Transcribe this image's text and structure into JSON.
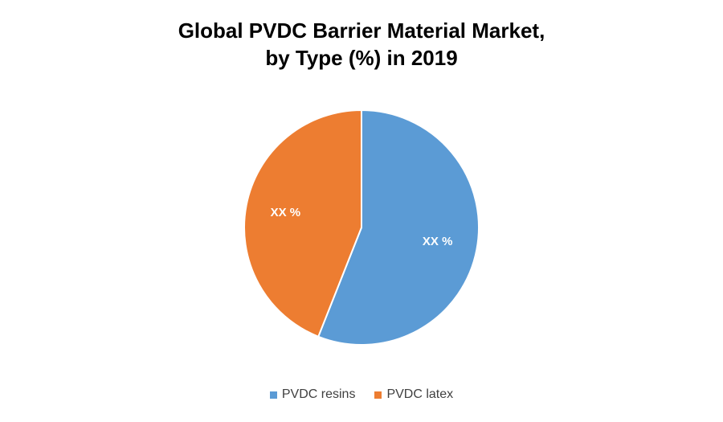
{
  "chart_data": {
    "type": "pie",
    "title_line1": "Global PVDC Barrier Material Market,",
    "title_line2": "by Type (%) in 2019",
    "categories": [
      "PVDC resins",
      "PVDC latex"
    ],
    "values": [
      56,
      44
    ],
    "data_labels": [
      "XX %",
      "XX %"
    ],
    "colors": [
      "#5B9BD5",
      "#ED7D31"
    ],
    "legend_position": "bottom"
  }
}
